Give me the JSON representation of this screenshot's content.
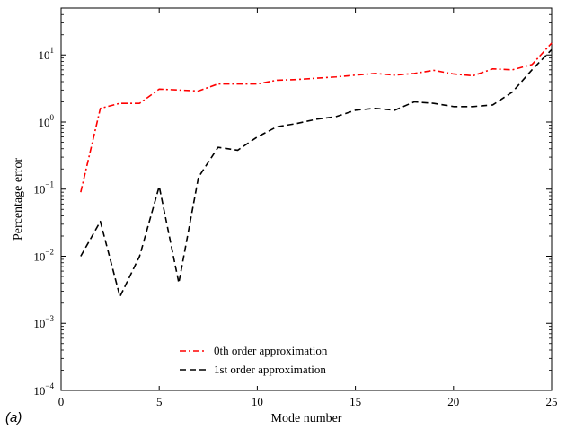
{
  "panel_label": "(a)",
  "chart_data": {
    "type": "line",
    "title": "",
    "xlabel": "Mode number",
    "ylabel": "Percentage error",
    "xlim": [
      0,
      25
    ],
    "ylim": [
      0.0001,
      50
    ],
    "y_scale": "log",
    "x_ticks": [
      0,
      5,
      10,
      15,
      20,
      25
    ],
    "y_ticks": [
      {
        "value": 0.0001,
        "base": "10",
        "exp": "−4"
      },
      {
        "value": 0.001,
        "base": "10",
        "exp": "−3"
      },
      {
        "value": 0.01,
        "base": "10",
        "exp": "−2"
      },
      {
        "value": 0.1,
        "base": "10",
        "exp": "−1"
      },
      {
        "value": 1,
        "base": "10",
        "exp": "0"
      },
      {
        "value": 10,
        "base": "10",
        "exp": "1"
      }
    ],
    "grid": false,
    "legend_position": "bottom-center",
    "x": [
      1,
      2,
      3,
      4,
      5,
      6,
      7,
      8,
      9,
      10,
      11,
      12,
      13,
      14,
      15,
      16,
      17,
      18,
      19,
      20,
      21,
      22,
      23,
      24,
      25
    ],
    "series": [
      {
        "name": "0th order approximation",
        "color": "#ff0000",
        "style": "dash-dot",
        "values": [
          0.09,
          1.6,
          1.9,
          1.9,
          3.1,
          3.0,
          2.9,
          3.7,
          3.7,
          3.7,
          4.2,
          4.3,
          4.5,
          4.7,
          5.0,
          5.3,
          5.0,
          5.3,
          5.9,
          5.2,
          4.9,
          6.2,
          6.0,
          7.2,
          15.0
        ]
      },
      {
        "name": "1st order approximation",
        "color": "#000000",
        "style": "dashed",
        "values": [
          0.01,
          0.033,
          0.0025,
          0.01,
          0.11,
          0.004,
          0.15,
          0.42,
          0.38,
          0.6,
          0.85,
          0.95,
          1.1,
          1.2,
          1.5,
          1.6,
          1.5,
          2.0,
          1.9,
          1.7,
          1.7,
          1.8,
          2.8,
          6.0,
          12.0
        ]
      }
    ]
  }
}
